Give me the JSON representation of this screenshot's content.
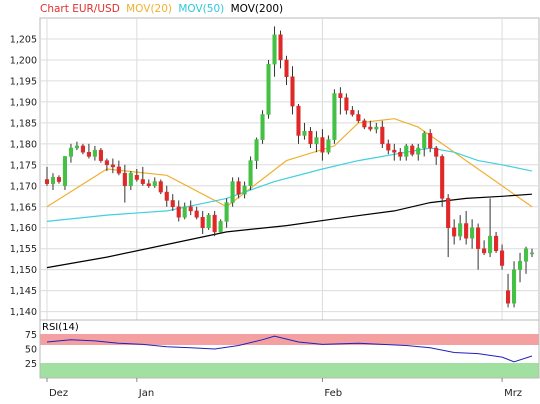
{
  "chart_data": [
    {
      "type": "candlestick",
      "title_parts": [
        "Chart EUR/USD",
        "MOV(20)",
        "MOV(50)",
        "MOV(200)"
      ],
      "ylim": [
        1.138,
        1.21
      ],
      "y_ticks": [
        "1,140",
        "1,145",
        "1,150",
        "1,155",
        "1,160",
        "1,165",
        "1,170",
        "1,175",
        "1,180",
        "1,185",
        "1,190",
        "1,195",
        "1,200",
        "1,205"
      ],
      "x_ticks": [
        {
          "label": "Dez",
          "index": 0
        },
        {
          "label": "Jan",
          "index": 15
        },
        {
          "label": "Feb",
          "index": 46
        },
        {
          "label": "Mrz",
          "index": 76
        }
      ],
      "candles": [
        [
          1.1715,
          1.1745,
          1.17,
          1.1705
        ],
        [
          1.1705,
          1.173,
          1.169,
          1.172
        ],
        [
          1.172,
          1.1725,
          1.1705,
          1.171
        ],
        [
          1.17,
          1.177,
          1.169,
          1.177
        ],
        [
          1.177,
          1.18,
          1.1755,
          1.179
        ],
        [
          1.179,
          1.1805,
          1.1785,
          1.1795
        ],
        [
          1.1795,
          1.18,
          1.1775,
          1.178
        ],
        [
          1.178,
          1.18,
          1.1765,
          1.177
        ],
        [
          1.177,
          1.1795,
          1.176,
          1.1785
        ],
        [
          1.1785,
          1.179,
          1.1755,
          1.176
        ],
        [
          1.176,
          1.1765,
          1.1735,
          1.175
        ],
        [
          1.175,
          1.1765,
          1.173,
          1.1745
        ],
        [
          1.1745,
          1.176,
          1.1725,
          1.173
        ],
        [
          1.173,
          1.175,
          1.166,
          1.17
        ],
        [
          1.17,
          1.1735,
          1.169,
          1.173
        ],
        [
          1.1725,
          1.174,
          1.171,
          1.1715
        ],
        [
          1.1715,
          1.1745,
          1.17,
          1.1705
        ],
        [
          1.1705,
          1.1715,
          1.1695,
          1.17
        ],
        [
          1.17,
          1.172,
          1.1695,
          1.171
        ],
        [
          1.171,
          1.1715,
          1.168,
          1.1685
        ],
        [
          1.1685,
          1.17,
          1.165,
          1.1665
        ],
        [
          1.1665,
          1.168,
          1.164,
          1.165
        ],
        [
          1.165,
          1.1665,
          1.1615,
          1.1625
        ],
        [
          1.1625,
          1.166,
          1.162,
          1.165
        ],
        [
          1.165,
          1.1665,
          1.163,
          1.164
        ],
        [
          1.164,
          1.165,
          1.162,
          1.1625
        ],
        [
          1.1625,
          1.164,
          1.1585,
          1.16
        ],
        [
          1.16,
          1.1635,
          1.1595,
          1.163
        ],
        [
          1.163,
          1.164,
          1.158,
          1.159
        ],
        [
          1.159,
          1.162,
          1.1585,
          1.1615
        ],
        [
          1.1615,
          1.167,
          1.16,
          1.166
        ],
        [
          1.166,
          1.172,
          1.165,
          1.171
        ],
        [
          1.171,
          1.172,
          1.167,
          1.168
        ],
        [
          1.168,
          1.171,
          1.167,
          1.17
        ],
        [
          1.17,
          1.177,
          1.169,
          1.176
        ],
        [
          1.176,
          1.1815,
          1.174,
          1.181
        ],
        [
          1.181,
          1.188,
          1.18,
          1.187
        ],
        [
          1.187,
          1.2,
          1.186,
          1.199
        ],
        [
          1.199,
          1.208,
          1.196,
          1.206
        ],
        [
          1.206,
          1.207,
          1.198,
          1.2
        ],
        [
          1.2,
          1.201,
          1.194,
          1.196
        ],
        [
          1.196,
          1.1985,
          1.187,
          1.189
        ],
        [
          1.189,
          1.1895,
          1.18,
          1.182
        ],
        [
          1.182,
          1.185,
          1.181,
          1.183
        ],
        [
          1.183,
          1.184,
          1.179,
          1.18
        ],
        [
          1.18,
          1.183,
          1.178,
          1.1815
        ],
        [
          1.1815,
          1.1835,
          1.176,
          1.178
        ],
        [
          1.178,
          1.182,
          1.1775,
          1.181
        ],
        [
          1.181,
          1.193,
          1.18,
          1.192
        ],
        [
          1.192,
          1.1935,
          1.187,
          1.191
        ],
        [
          1.191,
          1.192,
          1.187,
          1.188
        ],
        [
          1.188,
          1.189,
          1.1865,
          1.187
        ],
        [
          1.187,
          1.188,
          1.185,
          1.1855
        ],
        [
          1.1855,
          1.186,
          1.1835,
          1.184
        ],
        [
          1.184,
          1.1855,
          1.183,
          1.1835
        ],
        [
          1.1835,
          1.185,
          1.1825,
          1.184
        ],
        [
          1.184,
          1.1855,
          1.179,
          1.18
        ],
        [
          1.18,
          1.181,
          1.1775,
          1.1785
        ],
        [
          1.1785,
          1.18,
          1.176,
          1.178
        ],
        [
          1.178,
          1.179,
          1.176,
          1.177
        ],
        [
          1.177,
          1.18,
          1.176,
          1.1795
        ],
        [
          1.1795,
          1.18,
          1.177,
          1.1775
        ],
        [
          1.1775,
          1.18,
          1.176,
          1.179
        ],
        [
          1.179,
          1.183,
          1.177,
          1.1825
        ],
        [
          1.1825,
          1.1835,
          1.178,
          1.179
        ],
        [
          1.179,
          1.1795,
          1.175,
          1.177
        ],
        [
          1.177,
          1.1775,
          1.165,
          1.167
        ],
        [
          1.167,
          1.168,
          1.153,
          1.16
        ],
        [
          1.16,
          1.162,
          1.156,
          1.158
        ],
        [
          1.158,
          1.163,
          1.157,
          1.161
        ],
        [
          1.161,
          1.164,
          1.156,
          1.1575
        ],
        [
          1.1575,
          1.162,
          1.155,
          1.16
        ],
        [
          1.16,
          1.161,
          1.15,
          1.155
        ],
        [
          1.155,
          1.157,
          1.1535,
          1.154
        ],
        [
          1.154,
          1.167,
          1.153,
          1.158
        ],
        [
          1.158,
          1.159,
          1.154,
          1.1545
        ],
        [
          1.1545,
          1.156,
          1.15,
          1.151
        ],
        [
          1.145,
          1.149,
          1.141,
          1.142
        ],
        [
          1.142,
          1.152,
          1.141,
          1.15
        ],
        [
          1.15,
          1.154,
          1.147,
          1.152
        ],
        [
          1.152,
          1.1555,
          1.149,
          1.155
        ],
        [
          1.154,
          1.155,
          1.153,
          1.154
        ]
      ],
      "series": [
        {
          "name": "MOV(20)",
          "color": "#f0b030",
          "points": [
            [
              0,
              1.165
            ],
            [
              10,
              1.174
            ],
            [
              20,
              1.1725
            ],
            [
              30,
              1.165
            ],
            [
              40,
              1.176
            ],
            [
              48,
              1.1795
            ],
            [
              52,
              1.185
            ],
            [
              58,
              1.186
            ],
            [
              62,
              1.184
            ],
            [
              66,
              1.18
            ],
            [
              70,
              1.176
            ],
            [
              74,
              1.172
            ],
            [
              78,
              1.168
            ],
            [
              81,
              1.165
            ]
          ]
        },
        {
          "name": "MOV(50)",
          "color": "#40d0e0",
          "points": [
            [
              0,
              1.1615
            ],
            [
              10,
              1.163
            ],
            [
              20,
              1.164
            ],
            [
              30,
              1.167
            ],
            [
              38,
              1.171
            ],
            [
              46,
              1.174
            ],
            [
              52,
              1.176
            ],
            [
              58,
              1.1775
            ],
            [
              64,
              1.179
            ],
            [
              68,
              1.178
            ],
            [
              72,
              1.176
            ],
            [
              76,
              1.175
            ],
            [
              81,
              1.1735
            ]
          ]
        },
        {
          "name": "MOV(200)",
          "color": "#000000",
          "points": [
            [
              0,
              1.1505
            ],
            [
              10,
              1.153
            ],
            [
              20,
              1.156
            ],
            [
              30,
              1.159
            ],
            [
              40,
              1.1605
            ],
            [
              50,
              1.1625
            ],
            [
              58,
              1.164
            ],
            [
              64,
              1.166
            ],
            [
              70,
              1.167
            ],
            [
              76,
              1.1675
            ],
            [
              81,
              1.168
            ]
          ]
        }
      ]
    },
    {
      "type": "line",
      "title": "RSI(14)",
      "ylim": [
        0,
        100
      ],
      "y_ticks": [
        "25",
        "50",
        "75"
      ],
      "overbought_level": 70,
      "oversold_level": 30,
      "series": [
        {
          "name": "RSI(14)",
          "color": "#2020c0",
          "points": [
            [
              0,
              62
            ],
            [
              4,
              66
            ],
            [
              8,
              64
            ],
            [
              12,
              60
            ],
            [
              16,
              58
            ],
            [
              20,
              54
            ],
            [
              24,
              52
            ],
            [
              28,
              50
            ],
            [
              32,
              56
            ],
            [
              36,
              66
            ],
            [
              38,
              72
            ],
            [
              42,
              62
            ],
            [
              46,
              58
            ],
            [
              52,
              60
            ],
            [
              56,
              58
            ],
            [
              60,
              56
            ],
            [
              64,
              52
            ],
            [
              68,
              44
            ],
            [
              72,
              42
            ],
            [
              76,
              36
            ],
            [
              78,
              28
            ],
            [
              81,
              38
            ]
          ]
        }
      ]
    }
  ]
}
